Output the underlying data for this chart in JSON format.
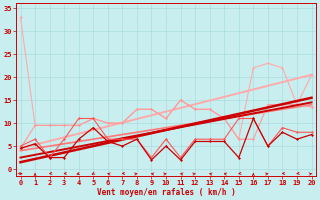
{
  "background_color": "#c8eef0",
  "grid_color": "#aadddd",
  "xlabel": "Vent moyen/en rafales ( km/h )",
  "xlim": [
    -0.3,
    20.3
  ],
  "ylim": [
    -1.5,
    36
  ],
  "yticks": [
    0,
    5,
    10,
    15,
    20,
    25,
    30,
    35
  ],
  "xticks": [
    0,
    1,
    2,
    3,
    4,
    5,
    6,
    7,
    8,
    9,
    10,
    11,
    12,
    13,
    14,
    15,
    16,
    17,
    18,
    19,
    20
  ],
  "series": [
    {
      "x": [
        0,
        1,
        2,
        3,
        4,
        5,
        6,
        7,
        8,
        9,
        10,
        11,
        12,
        13,
        14,
        15,
        16,
        17,
        18,
        19,
        20
      ],
      "y": [
        33,
        9.5,
        9.5,
        9.5,
        9.5,
        11,
        10,
        10,
        13,
        13,
        11,
        15,
        13,
        13,
        11,
        6.5,
        22,
        23,
        22,
        14,
        20.5
      ],
      "color": "#ffaaaa",
      "lw": 0.8,
      "marker": "D",
      "ms": 1.5,
      "zorder": 2
    },
    {
      "x": [
        0,
        1,
        2,
        3,
        4,
        5,
        6,
        7,
        8,
        9,
        10,
        11,
        12,
        13,
        14,
        15,
        16,
        17,
        18,
        19,
        20
      ],
      "y": [
        4.5,
        9.5,
        9.5,
        9.5,
        9.5,
        11,
        10,
        10,
        13,
        13,
        11,
        15,
        13,
        13,
        11,
        6.5,
        6.5,
        14,
        14,
        14,
        13.5
      ],
      "color": "#ff9999",
      "lw": 0.8,
      "marker": "D",
      "ms": 1.5,
      "zorder": 3
    },
    {
      "x": [
        0,
        1,
        2,
        3,
        4,
        5,
        6,
        7,
        8,
        9,
        10,
        11,
        12,
        13,
        14,
        15,
        16,
        17,
        18,
        19,
        20
      ],
      "y": [
        5,
        6.5,
        2.5,
        6.5,
        11,
        11,
        6.5,
        6.5,
        6.5,
        2.5,
        6.5,
        2.5,
        6.5,
        6.5,
        6.5,
        11,
        11,
        5,
        9,
        8,
        8
      ],
      "color": "#ff5555",
      "lw": 0.8,
      "marker": "D",
      "ms": 1.5,
      "zorder": 4
    },
    {
      "x": [
        0,
        1,
        2,
        3,
        4,
        5,
        6,
        7,
        8,
        9,
        10,
        11,
        12,
        13,
        14,
        15,
        16,
        17,
        18,
        19,
        20
      ],
      "y": [
        4.5,
        5.5,
        2.5,
        2.5,
        6.5,
        9,
        6,
        5,
        6.5,
        2,
        5,
        2,
        6,
        6,
        6,
        2.5,
        11,
        5,
        8,
        6.5,
        7.5
      ],
      "color": "#cc0000",
      "lw": 0.9,
      "marker": "D",
      "ms": 1.5,
      "zorder": 5
    },
    {
      "x": [
        0,
        20
      ],
      "y": [
        1.5,
        15.5
      ],
      "color": "#cc0000",
      "lw": 1.8,
      "marker": null,
      "ms": 0,
      "zorder": 3
    },
    {
      "x": [
        0,
        20
      ],
      "y": [
        2.5,
        14.5
      ],
      "color": "#cc0000",
      "lw": 1.4,
      "marker": null,
      "ms": 0,
      "zorder": 3
    },
    {
      "x": [
        0,
        20
      ],
      "y": [
        4.5,
        20.5
      ],
      "color": "#ffaaaa",
      "lw": 1.4,
      "marker": null,
      "ms": 0,
      "zorder": 2
    },
    {
      "x": [
        0,
        20
      ],
      "y": [
        4.0,
        14.0
      ],
      "color": "#ff7777",
      "lw": 1.2,
      "marker": null,
      "ms": 0,
      "zorder": 2
    }
  ],
  "wind_arrows": {
    "y_data": -1.0,
    "directions_deg": [
      90,
      0,
      225,
      225,
      210,
      200,
      315,
      225,
      45,
      315,
      45,
      315,
      45,
      315,
      315,
      225,
      0,
      45,
      225,
      225,
      45
    ],
    "color": "#cc0000",
    "scale": 0.35
  }
}
